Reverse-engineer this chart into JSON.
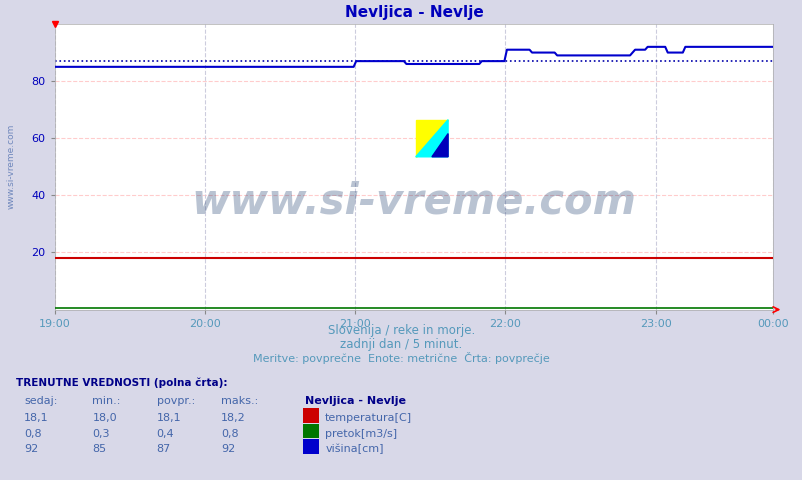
{
  "title": "Nevljica - Nevlje",
  "title_color": "#0000bb",
  "bg_color": "#d8d8e8",
  "plot_bg_color": "#ffffff",
  "grid_color_h": "#ffcccc",
  "grid_color_v": "#ccccdd",
  "xlabel_text1": "Slovenija / reke in morje.",
  "xlabel_text2": "zadnji dan / 5 minut.",
  "xlabel_text3": "Meritve: povprečne  Enote: metrične  Črta: povprečje",
  "ylabel_text": "www.si-vreme.com",
  "xmin": 0,
  "xmax": 287,
  "ymin": 0,
  "ymax": 100,
  "yticks": [
    20,
    40,
    60,
    80
  ],
  "xtick_positions": [
    0,
    60,
    120,
    180,
    240,
    287
  ],
  "xtick_labels": [
    "19:00",
    "20:00",
    "21:00",
    "22:00",
    "23:00",
    "00:00"
  ],
  "temp_value": 18.1,
  "temp_color": "#cc0000",
  "flow_value": 0.4,
  "flow_color": "#007700",
  "height_avg": 87,
  "height_color": "#0000cc",
  "height_dotted_color": "#0000aa",
  "height_data": [
    85,
    85,
    85,
    85,
    85,
    85,
    85,
    85,
    85,
    85,
    85,
    85,
    85,
    85,
    85,
    85,
    85,
    85,
    85,
    85,
    85,
    85,
    85,
    85,
    85,
    85,
    85,
    85,
    85,
    85,
    85,
    85,
    85,
    85,
    85,
    85,
    85,
    85,
    85,
    85,
    85,
    85,
    85,
    85,
    85,
    85,
    85,
    85,
    85,
    85,
    85,
    85,
    85,
    85,
    85,
    85,
    85,
    85,
    85,
    85,
    85,
    85,
    85,
    85,
    85,
    85,
    85,
    85,
    85,
    85,
    85,
    85,
    85,
    85,
    85,
    85,
    85,
    85,
    85,
    85,
    85,
    85,
    85,
    85,
    85,
    85,
    85,
    85,
    85,
    85,
    85,
    85,
    85,
    85,
    85,
    85,
    85,
    85,
    85,
    85,
    85,
    85,
    85,
    85,
    85,
    85,
    85,
    85,
    85,
    85,
    85,
    85,
    85,
    85,
    85,
    85,
    85,
    85,
    85,
    85,
    87,
    87,
    87,
    87,
    87,
    87,
    87,
    87,
    87,
    87,
    87,
    87,
    87,
    87,
    87,
    87,
    87,
    87,
    87,
    87,
    86,
    86,
    86,
    86,
    86,
    86,
    86,
    86,
    86,
    86,
    86,
    86,
    86,
    86,
    86,
    86,
    86,
    86,
    86,
    86,
    86,
    86,
    86,
    86,
    86,
    86,
    86,
    86,
    86,
    86,
    87,
    87,
    87,
    87,
    87,
    87,
    87,
    87,
    87,
    87,
    91,
    91,
    91,
    91,
    91,
    91,
    91,
    91,
    91,
    91,
    90,
    90,
    90,
    90,
    90,
    90,
    90,
    90,
    90,
    90,
    89,
    89,
    89,
    89,
    89,
    89,
    89,
    89,
    89,
    89,
    89,
    89,
    89,
    89,
    89,
    89,
    89,
    89,
    89,
    89,
    89,
    89,
    89,
    89,
    89,
    89,
    89,
    89,
    89,
    89,
    90,
    91,
    91,
    91,
    91,
    91,
    92,
    92,
    92,
    92,
    92,
    92,
    92,
    92,
    90,
    90,
    90,
    90,
    90,
    90,
    90,
    92,
    92,
    92,
    92,
    92,
    92,
    92,
    92,
    92,
    92,
    92,
    92,
    92,
    92,
    92,
    92,
    92,
    92,
    92,
    92,
    92,
    92,
    92,
    92,
    92,
    92,
    92,
    92,
    92,
    92,
    92,
    92,
    92,
    92,
    92,
    92
  ],
  "watermark_text": "www.si-vreme.com",
  "watermark_color": "#1a3a6b",
  "watermark_alpha": 0.3,
  "footer_color": "#5599bb",
  "table_header_color": "#000088",
  "table_color": "#4466aa",
  "legend_title": "Nevljica - Nevlje",
  "legend_items": [
    {
      "label": "temperatura[C]",
      "color": "#cc0000"
    },
    {
      "label": "pretok[m3/s]",
      "color": "#007700"
    },
    {
      "label": "višina[cm]",
      "color": "#0000cc"
    }
  ],
  "table_data": {
    "rows": [
      [
        "18,1",
        "18,0",
        "18,1",
        "18,2"
      ],
      [
        "0,8",
        "0,3",
        "0,4",
        "0,8"
      ],
      [
        "92",
        "85",
        "87",
        "92"
      ]
    ]
  }
}
